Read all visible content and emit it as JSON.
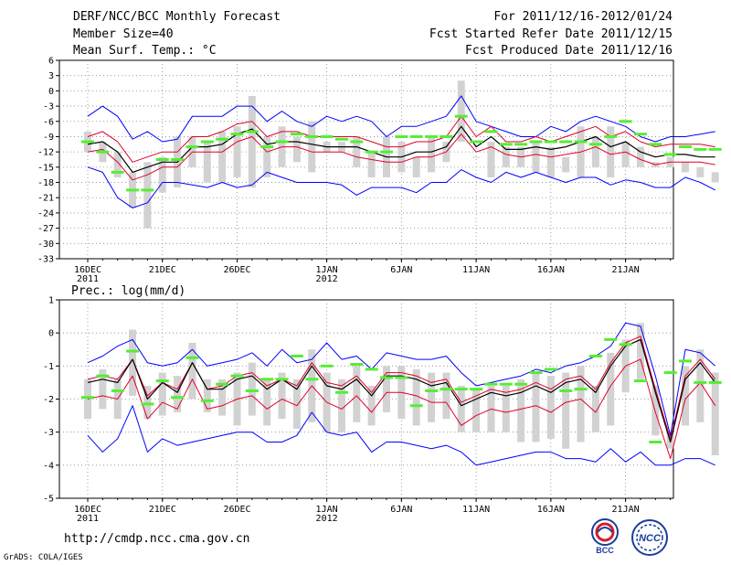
{
  "header": {
    "title": "DERF/NCC/BCC Monthly Forecast",
    "member_size": "Member Size=40",
    "variable_temp": "Mean Surf. Temp.: °C",
    "forecast_period": "For 2011/12/16-2012/01/24",
    "fcst_started": "Fcst Started Refer Date 2011/12/15",
    "fcst_produced": "Fcst Produced Date 2011/12/16"
  },
  "footer": {
    "url": "http://cmdp.ncc.cma.gov.cn",
    "credit": "GrADS: COLA/IGES",
    "logo_bcc": "BCC",
    "logo_ncc": "NCC"
  },
  "colors": {
    "max_line": "#0000ff",
    "min_line": "#0000ff",
    "spread_line": "#e0002a",
    "mean_line": "#000000",
    "box": "#d2d2d2",
    "clim": "#55ee33",
    "grid": "#888888"
  },
  "chart_data": [
    {
      "type": "line",
      "title": "Mean Surf. Temp.: °C",
      "ylim": [
        -33,
        6
      ],
      "yticks": [
        6,
        3,
        0,
        -3,
        -6,
        -9,
        -12,
        -15,
        -18,
        -21,
        -24,
        -27,
        -30,
        -33
      ],
      "x_tick_days": [
        0,
        5,
        10,
        16,
        21,
        26,
        31,
        36
      ],
      "x_tick_labels": [
        "16DEC",
        "21DEC",
        "26DEC",
        "1JAN",
        "6JAN",
        "11JAN",
        "16JAN",
        "21JAN"
      ],
      "x_year_labels": [
        {
          "day": 0,
          "label": "2011"
        },
        {
          "day": 16,
          "label": "2012"
        }
      ],
      "series": [
        {
          "name": "max",
          "values": [
            -5,
            -3,
            -5,
            -9.5,
            -8,
            -10,
            -9.5,
            -5,
            -5,
            -5,
            -3,
            -3,
            -6,
            -4,
            -6,
            -7,
            -5,
            -6,
            -5,
            -6,
            -9,
            -7,
            -7,
            -6,
            -5,
            -1,
            -6,
            -7,
            -8,
            -9,
            -9,
            -7,
            -8,
            -6,
            -5,
            -6,
            -7,
            -9,
            -10,
            -9,
            -9,
            -8.5,
            -8
          ]
        },
        {
          "name": "spread_upper",
          "values": [
            -9,
            -8,
            -10,
            -14,
            -13,
            -12,
            -12,
            -9,
            -9,
            -8,
            -6.5,
            -6,
            -9,
            -8,
            -8,
            -9,
            -9,
            -9,
            -9,
            -10,
            -11,
            -11,
            -10,
            -10,
            -9,
            -5,
            -9,
            -7,
            -10,
            -10,
            -9,
            -10,
            -9,
            -8,
            -7,
            -9,
            -8,
            -10,
            -11,
            -10.5,
            -10.5,
            -10.5,
            -11
          ]
        },
        {
          "name": "mean",
          "values": [
            -10.5,
            -10,
            -12,
            -16,
            -15,
            -14,
            -14,
            -11,
            -11,
            -10.5,
            -8.5,
            -7.5,
            -10.5,
            -10,
            -10,
            -10.5,
            -11,
            -11,
            -11,
            -12,
            -13,
            -13,
            -12,
            -12,
            -11,
            -7,
            -11,
            -9,
            -11.5,
            -11.5,
            -11,
            -11.5,
            -11,
            -10,
            -9,
            -11,
            -10,
            -12,
            -13,
            -12.5,
            -12.5,
            -13,
            -13
          ]
        },
        {
          "name": "spread_lower",
          "values": [
            -12,
            -11.5,
            -14,
            -17.5,
            -16.5,
            -15,
            -15,
            -12,
            -12,
            -12,
            -10,
            -9,
            -12,
            -11,
            -11,
            -12,
            -12,
            -12,
            -13,
            -13.5,
            -14,
            -14,
            -13,
            -13,
            -12,
            -8.5,
            -12,
            -11,
            -12.5,
            -13,
            -12.5,
            -13,
            -12.5,
            -12,
            -11,
            -12.5,
            -12,
            -13.5,
            -14.5,
            -14,
            -14,
            -14,
            -14.5
          ]
        },
        {
          "name": "min",
          "values": [
            -15,
            -16,
            -21,
            -23,
            -22,
            -18,
            -18,
            -18.5,
            -19,
            -18,
            -19,
            -18.5,
            -16,
            -17,
            -18,
            -18,
            -18,
            -18.5,
            -20.5,
            -19,
            -19,
            -19,
            -20,
            -18,
            -18,
            -15.5,
            -17,
            -18,
            -16,
            -17,
            -16,
            -17,
            -18,
            -17,
            -17,
            -18.5,
            -17.5,
            -18,
            -19,
            -19,
            -17,
            -18,
            -19.5
          ]
        },
        {
          "name": "box_top",
          "values": [
            -8,
            -10,
            -12,
            -16,
            -14,
            -13,
            -9,
            -9,
            -10,
            -8,
            -7,
            -1,
            -9,
            -7,
            -9,
            -6,
            -10,
            -10,
            -9,
            -12,
            -9,
            -10,
            -13,
            -9,
            -10,
            2,
            -13,
            -10,
            -11,
            -11,
            -10,
            -11,
            -13,
            -7,
            -9,
            -7,
            -10,
            -11,
            -14,
            -13,
            -14,
            -15,
            -16
          ]
        },
        {
          "name": "box_bottom",
          "values": [
            -12,
            -14,
            -17,
            -23,
            -27,
            -20,
            -19,
            -15,
            -18,
            -18,
            -17,
            -19,
            -17,
            -15,
            -14,
            -16,
            -12,
            -12,
            -15,
            -17,
            -17,
            -16,
            -17,
            -16,
            -14,
            -10,
            -13,
            -17,
            -15,
            -15,
            -16,
            -17,
            -16,
            -17,
            -15,
            -17,
            -15,
            -15,
            -15,
            -15,
            -16,
            -17,
            -18
          ]
        },
        {
          "name": "climatology",
          "values": [
            -10,
            -12,
            -16,
            -19.5,
            -19.5,
            -13.5,
            -13.5,
            -11,
            -10,
            -9.5,
            -8.5,
            -8,
            -11,
            -10,
            -8.5,
            -9,
            -9,
            -9.5,
            -10,
            -12,
            -12,
            -9,
            -9,
            -9,
            -9,
            -5,
            -10,
            -8,
            -10.5,
            -10.5,
            -10,
            -10,
            -10,
            -10,
            -10.5,
            -9,
            -6,
            -8.5,
            -10.5,
            -12.5,
            -11,
            -11.5,
            -11.5
          ]
        }
      ]
    },
    {
      "type": "line",
      "title": "Prec.: log(mm/d)",
      "ylim": [
        -5,
        1
      ],
      "yticks": [
        1,
        0,
        -1,
        -2,
        -3,
        -4,
        -5
      ],
      "x_tick_days": [
        0,
        5,
        10,
        16,
        21,
        26,
        31,
        36
      ],
      "x_tick_labels": [
        "16DEC",
        "21DEC",
        "26DEC",
        "1JAN",
        "6JAN",
        "11JAN",
        "16JAN",
        "21JAN"
      ],
      "x_year_labels": [
        {
          "day": 0,
          "label": "2011"
        },
        {
          "day": 16,
          "label": "2012"
        }
      ],
      "series": [
        {
          "name": "max",
          "values": [
            -0.9,
            -0.7,
            -0.4,
            -0.2,
            -0.9,
            -1,
            -0.9,
            -0.5,
            -1,
            -0.9,
            -0.8,
            -0.6,
            -1,
            -0.5,
            -0.9,
            -0.8,
            -0.3,
            -0.8,
            -0.7,
            -1.1,
            -0.6,
            -0.7,
            -0.8,
            -0.8,
            -0.7,
            -1.2,
            -1.6,
            -1.5,
            -1.4,
            -1.3,
            -1.1,
            -1.2,
            -1,
            -0.9,
            -0.7,
            -0.4,
            0.3,
            0.2,
            -1.3,
            -3.1,
            -0.5,
            -0.6,
            -1
          ]
        },
        {
          "name": "spread_upper",
          "values": [
            -1.4,
            -1.3,
            -1.4,
            -0.8,
            -1.9,
            -1.5,
            -1.7,
            -0.9,
            -1.7,
            -1.6,
            -1.3,
            -1.2,
            -1.6,
            -1.4,
            -1.6,
            -0.9,
            -1.5,
            -1.6,
            -1.3,
            -1.8,
            -1.2,
            -1.2,
            -1.3,
            -1.5,
            -1.4,
            -2.1,
            -1.9,
            -1.7,
            -1.8,
            -1.7,
            -1.5,
            -1.7,
            -1.4,
            -1.3,
            -1.7,
            -0.9,
            -0.3,
            -0.1,
            -1.7,
            -3.2,
            -1.3,
            -0.8,
            -1.4
          ]
        },
        {
          "name": "mean",
          "values": [
            -1.5,
            -1.4,
            -1.5,
            -0.8,
            -2,
            -1.5,
            -1.8,
            -0.9,
            -1.7,
            -1.7,
            -1.4,
            -1.3,
            -1.7,
            -1.4,
            -1.7,
            -1,
            -1.6,
            -1.7,
            -1.4,
            -1.9,
            -1.3,
            -1.3,
            -1.4,
            -1.6,
            -1.5,
            -2.2,
            -2,
            -1.8,
            -1.9,
            -1.8,
            -1.6,
            -1.8,
            -1.5,
            -1.4,
            -1.8,
            -1,
            -0.4,
            -0.2,
            -1.8,
            -3.3,
            -1.4,
            -0.9,
            -1.5
          ]
        },
        {
          "name": "spread_lower",
          "values": [
            -2,
            -1.9,
            -2,
            -1.3,
            -2.6,
            -2.1,
            -2.3,
            -1.4,
            -2.3,
            -2.2,
            -2,
            -1.9,
            -2.3,
            -2,
            -2.2,
            -1.6,
            -2.1,
            -2.3,
            -1.9,
            -2.4,
            -1.8,
            -1.8,
            -1.9,
            -2.1,
            -2.1,
            -2.8,
            -2.5,
            -2.3,
            -2.4,
            -2.3,
            -2.2,
            -2.4,
            -2.1,
            -2,
            -2.4,
            -1.6,
            -1,
            -0.8,
            -2.4,
            -3.8,
            -2,
            -1.5,
            -2.2
          ]
        },
        {
          "name": "min",
          "values": [
            -3.1,
            -3.6,
            -3.2,
            -2.2,
            -3.6,
            -3.2,
            -3.4,
            -3.3,
            -3.2,
            -3.1,
            -3,
            -3,
            -3.3,
            -3.3,
            -3.1,
            -2.4,
            -3,
            -3.1,
            -3,
            -3.6,
            -3.3,
            -3.3,
            -3.4,
            -3.5,
            -3.4,
            -3.6,
            -4,
            -3.9,
            -3.8,
            -3.7,
            -3.6,
            -3.6,
            -3.8,
            -3.8,
            -3.9,
            -3.5,
            -3.9,
            -3.6,
            -4,
            -4,
            -3.8,
            -3.8,
            -4
          ]
        },
        {
          "name": "box_top",
          "values": [
            -1.4,
            -1.1,
            -1.4,
            0.1,
            -1.6,
            -1.2,
            -1.3,
            -0.3,
            -1.4,
            -1.4,
            -1.2,
            -0.9,
            -1.4,
            -1.2,
            -1.4,
            -0.5,
            -1.2,
            -1.4,
            -1,
            -1.6,
            -1,
            -1,
            -1.1,
            -1.2,
            -1.2,
            -1.6,
            -1.7,
            -1.6,
            -1.6,
            -1.4,
            -1.2,
            -1.3,
            -1.2,
            -1,
            -1.6,
            -0.6,
            -0.2,
            0.3,
            -1.6,
            -3,
            -1,
            -0.5,
            -1.2
          ]
        },
        {
          "name": "box_bottom",
          "values": [
            -2.6,
            -2.3,
            -2.6,
            -1.9,
            -2.6,
            -2.5,
            -2.4,
            -2,
            -2.4,
            -2.5,
            -2.8,
            -2.5,
            -2.8,
            -2.6,
            -2.9,
            -2.7,
            -3,
            -3,
            -2.7,
            -2.8,
            -2.4,
            -2.6,
            -2.8,
            -2.7,
            -2.6,
            -3,
            -3,
            -3,
            -3,
            -3.3,
            -3.3,
            -3.2,
            -3.5,
            -3.3,
            -3,
            -2.8,
            -1.8,
            -1.4,
            -3.1,
            -3.5,
            -2.8,
            -2.7,
            -3.7
          ]
        },
        {
          "name": "climatology",
          "values": [
            -1.95,
            -1.3,
            -1.75,
            -0.55,
            -2.15,
            -1.45,
            -1.95,
            -0.75,
            -2.05,
            -1.55,
            -1.3,
            -1.75,
            -1.4,
            -1.4,
            -0.7,
            -1.4,
            -1,
            -1.8,
            -0.95,
            -1.1,
            -1.35,
            -1.35,
            -2.2,
            -1.75,
            -1.7,
            -1.7,
            -1.7,
            -1.55,
            -1.55,
            -1.55,
            -1.2,
            -1.1,
            -1.75,
            -1.7,
            -0.7,
            -0.2,
            -0.35,
            -1.45,
            -3.3,
            -1.2,
            -0.85,
            -1.5,
            -1.5
          ]
        }
      ]
    }
  ]
}
